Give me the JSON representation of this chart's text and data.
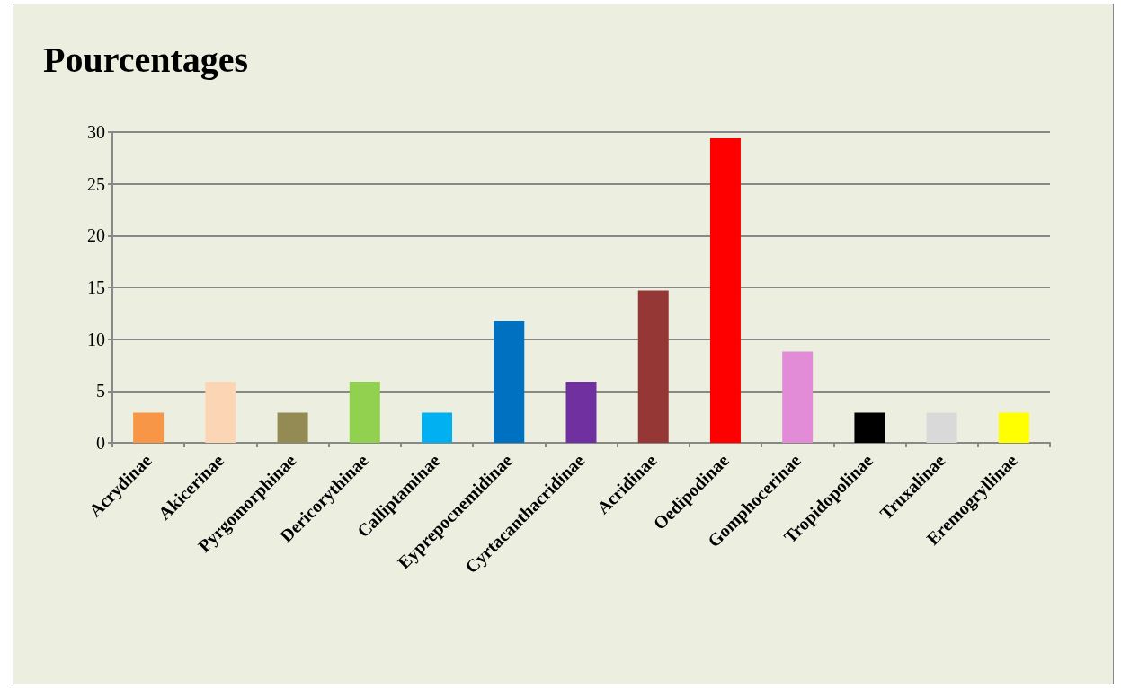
{
  "chart_data": {
    "type": "bar",
    "title": "Pourcentages",
    "categories": [
      "Acrydinae",
      "Akicerinae",
      "Pyrgomorphinae",
      "Dericorythinae",
      "Calliptaminae",
      "Eyprepocnemidinae",
      "Cyrtacanthacridinae",
      "Acridinae",
      "Oedipodinae",
      "Gomphocerinae",
      "Tropidopolinae",
      "Truxalinae",
      "Eremogryllinae"
    ],
    "values": [
      2.9,
      5.9,
      2.9,
      5.9,
      2.9,
      11.8,
      5.9,
      14.7,
      29.4,
      8.8,
      2.9,
      2.9,
      2.9
    ],
    "colors": [
      "#f79646",
      "#fcd5b5",
      "#948a54",
      "#92d050",
      "#00b0f0",
      "#0070c0",
      "#7030a0",
      "#953735",
      "#ff0000",
      "#e28cd8",
      "#000000",
      "#d9d9d9",
      "#ffff00"
    ],
    "ylim": [
      0,
      30
    ],
    "yticks": [
      0,
      5,
      10,
      15,
      20,
      25,
      30
    ],
    "grid": "y"
  }
}
